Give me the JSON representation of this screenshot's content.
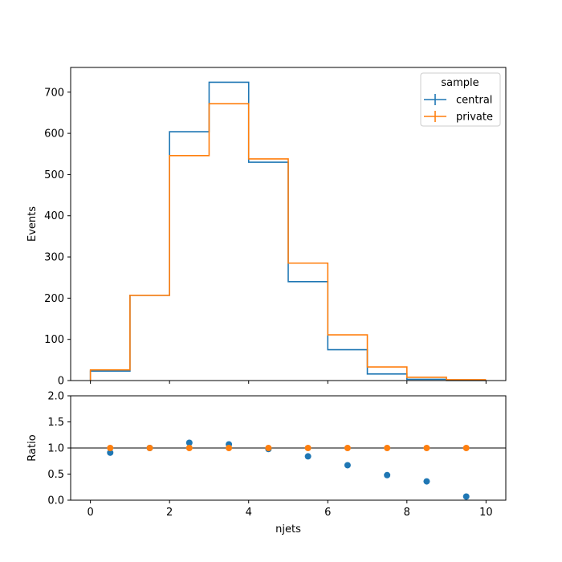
{
  "chart_data": [
    {
      "type": "histogram",
      "panel": "main",
      "xlabel": "",
      "ylabel": "Events",
      "xlim": [
        -0.5,
        10.5
      ],
      "ylim": [
        0,
        760
      ],
      "xticks": [
        0,
        2,
        4,
        6,
        8,
        10
      ],
      "yticks": [
        0,
        100,
        200,
        300,
        400,
        500,
        600,
        700
      ],
      "bin_edges": [
        0,
        1,
        2,
        3,
        4,
        5,
        6,
        7,
        8,
        9,
        10
      ],
      "legend": {
        "title": "sample",
        "placement": "top-right"
      },
      "series": [
        {
          "name": "central",
          "color": "#1f77b4",
          "values": [
            23,
            207,
            604,
            724,
            530,
            240,
            75,
            16,
            3,
            0.2
          ]
        },
        {
          "name": "private",
          "color": "#ff7f0e",
          "values": [
            26,
            207,
            546,
            672,
            538,
            285,
            111,
            33,
            8,
            2
          ]
        }
      ]
    },
    {
      "type": "scatter",
      "panel": "ratio",
      "xlabel": "njets",
      "ylabel": "Ratio",
      "xlim": [
        -0.5,
        10.5
      ],
      "ylim": [
        0,
        2
      ],
      "xticks": [
        0,
        2,
        4,
        6,
        8,
        10
      ],
      "yticks": [
        0.0,
        0.5,
        1.0,
        1.5,
        2.0
      ],
      "reference_line": 1.0,
      "x": [
        0.5,
        1.5,
        2.5,
        3.5,
        4.5,
        5.5,
        6.5,
        7.5,
        8.5,
        9.5
      ],
      "series": [
        {
          "name": "central",
          "color": "#1f77b4",
          "values": [
            0.91,
            1.0,
            1.1,
            1.07,
            0.98,
            0.84,
            0.67,
            0.48,
            0.36,
            0.07
          ]
        },
        {
          "name": "private",
          "color": "#ff7f0e",
          "values": [
            1.0,
            1.0,
            1.0,
            1.0,
            1.0,
            1.0,
            1.0,
            1.0,
            1.0,
            1.0
          ]
        }
      ]
    }
  ]
}
